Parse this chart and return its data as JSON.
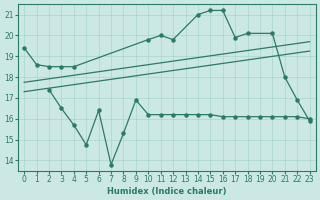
{
  "line1_x": [
    0,
    1,
    2,
    3,
    4,
    10,
    11,
    12,
    14,
    15,
    16,
    17,
    18,
    20,
    21,
    22,
    23
  ],
  "line1_y": [
    19.4,
    18.6,
    18.5,
    18.5,
    18.5,
    19.8,
    20.0,
    19.8,
    21.0,
    21.2,
    21.2,
    19.9,
    20.1,
    20.1,
    18.0,
    16.9,
    15.9
  ],
  "line2_x": [
    2,
    3,
    4,
    5,
    6,
    7,
    8,
    9,
    10,
    11,
    12,
    13,
    14,
    15,
    16,
    17,
    18,
    19,
    20,
    21,
    22,
    23
  ],
  "line2_y": [
    17.4,
    16.5,
    15.7,
    14.75,
    16.4,
    13.8,
    15.3,
    16.9,
    16.2,
    16.2,
    16.2,
    16.2,
    16.2,
    16.2,
    16.1,
    16.1,
    16.1,
    16.1,
    16.1,
    16.1,
    16.1,
    16.0
  ],
  "trend1_x": [
    0,
    23
  ],
  "trend1_y": [
    17.3,
    19.25
  ],
  "trend2_x": [
    0,
    23
  ],
  "trend2_y": [
    17.75,
    19.7
  ],
  "ylim": [
    13.5,
    21.5
  ],
  "xlim": [
    -0.5,
    23.5
  ],
  "yticks": [
    14,
    15,
    16,
    17,
    18,
    19,
    20,
    21
  ],
  "xticks": [
    0,
    1,
    2,
    3,
    4,
    5,
    6,
    7,
    8,
    9,
    10,
    11,
    12,
    13,
    14,
    15,
    16,
    17,
    18,
    19,
    20,
    21,
    22,
    23
  ],
  "xlabel": "Humidex (Indice chaleur)",
  "line_color": "#2a7a6a",
  "bg_color": "#cce8e4",
  "grid_color": "#aad4cf"
}
